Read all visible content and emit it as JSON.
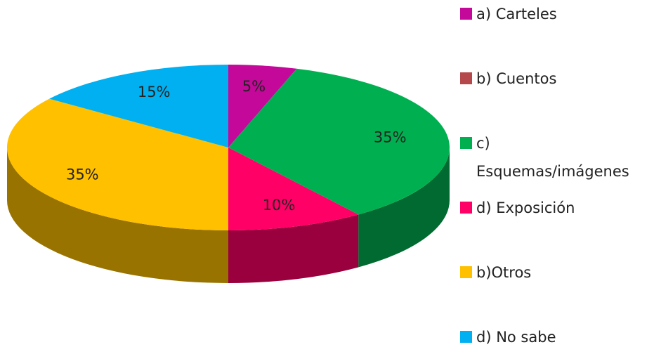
{
  "chart_data": {
    "type": "pie3d",
    "categories": [
      "a) Carteles",
      "b) Cuentos",
      "c) Esquemas/imágenes",
      "d) Exposición",
      "b)Otros",
      "d) No sabe"
    ],
    "values": [
      5,
      0,
      35,
      10,
      35,
      15
    ],
    "value_labels": [
      "5%",
      null,
      "35%",
      "10%",
      "35%",
      "15%"
    ],
    "colors": [
      "#c4089a",
      "#b5484a",
      "#00b050",
      "#ff0066",
      "#ffc000",
      "#00b0f0"
    ],
    "legend": "right"
  }
}
